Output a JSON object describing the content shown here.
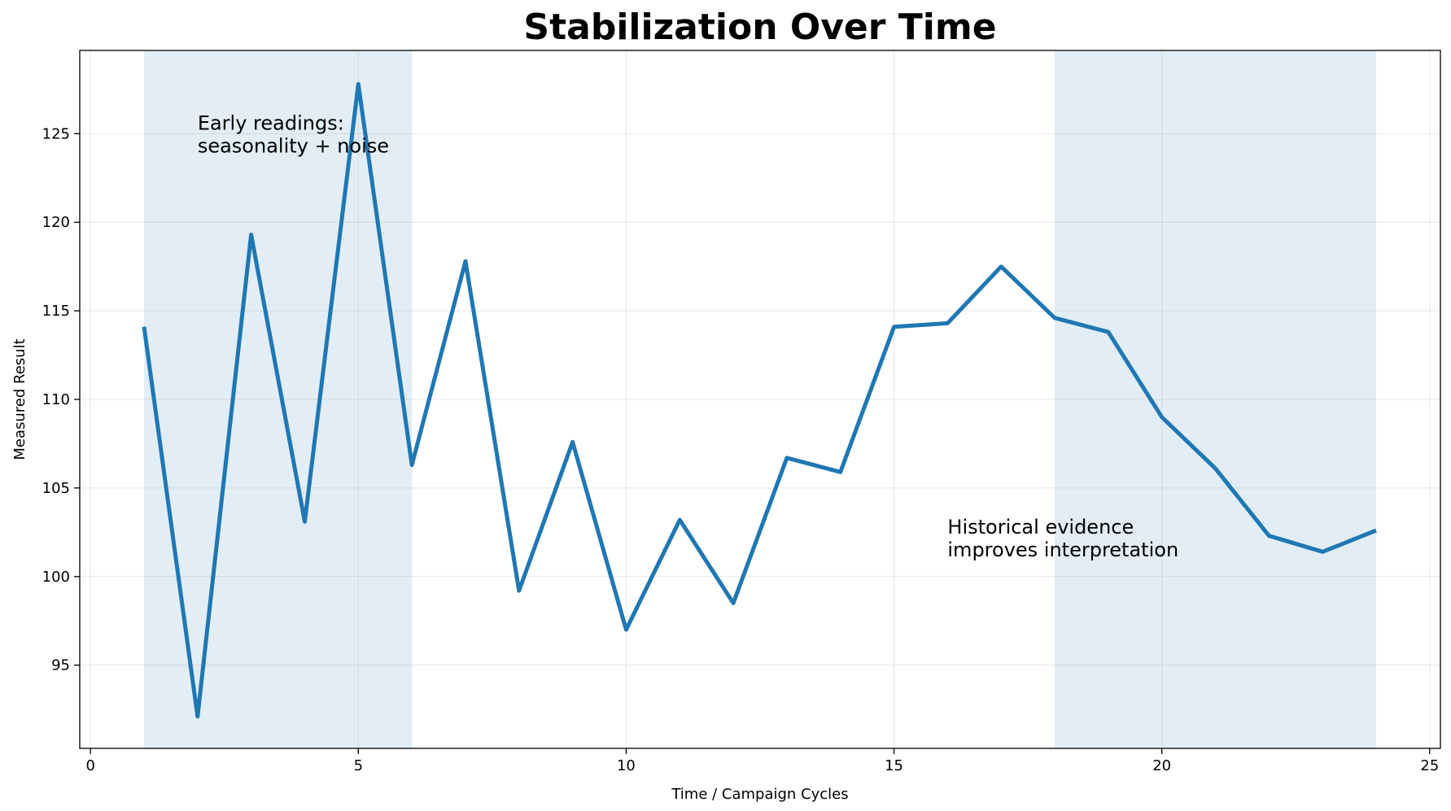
{
  "chart_data": {
    "type": "line",
    "title": "Stabilization Over Time",
    "xlabel": "Time / Campaign Cycles",
    "ylabel": "Measured Result",
    "xlim": [
      -0.2,
      25.2
    ],
    "ylim": [
      90.3,
      129.7
    ],
    "xticks": [
      0,
      5,
      10,
      15,
      20,
      25
    ],
    "yticks": [
      95,
      100,
      105,
      110,
      115,
      120,
      125
    ],
    "grid": true,
    "legend": "none",
    "series": [
      {
        "color": "#1f77b4",
        "x": [
          1,
          2,
          3,
          4,
          5,
          6,
          7,
          8,
          9,
          10,
          11,
          12,
          13,
          14,
          15,
          16,
          17,
          18,
          19,
          20,
          21,
          22,
          23,
          24
        ],
        "y": [
          114.1,
          92.1,
          119.3,
          103.1,
          127.8,
          106.3,
          117.8,
          99.2,
          107.6,
          97.0,
          103.2,
          98.5,
          106.7,
          105.9,
          114.1,
          114.3,
          117.5,
          114.6,
          113.8,
          109.0,
          106.1,
          102.3,
          101.4,
          102.6
        ]
      }
    ],
    "shaded_regions": [
      {
        "x_start": 1,
        "x_end": 6,
        "color": "#1f77b4"
      },
      {
        "x_start": 18,
        "x_end": 24,
        "color": "#1f77b4"
      }
    ],
    "annotations": [
      {
        "lines": [
          "Early readings:",
          "seasonality + noise"
        ],
        "x": 2,
        "y": 124.3
      },
      {
        "lines": [
          "Historical evidence",
          "improves interpretation"
        ],
        "x": 16,
        "y": 101.5
      }
    ]
  }
}
